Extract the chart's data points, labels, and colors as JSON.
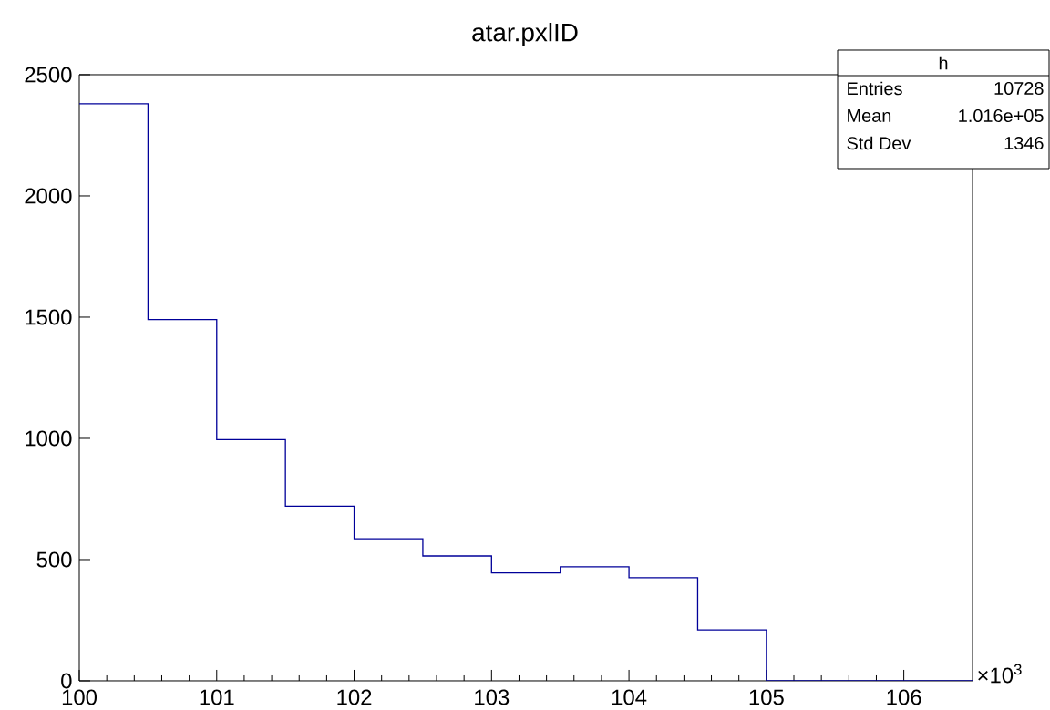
{
  "chart_data": {
    "type": "histogram",
    "title": "atar.pxlID",
    "bins": [
      100,
      100.5,
      101,
      101.5,
      102,
      102.5,
      103,
      103.5,
      104,
      104.5,
      105,
      105.5,
      106,
      106.5
    ],
    "values": [
      2380,
      1490,
      995,
      720,
      586,
      515,
      445,
      470,
      425,
      210,
      0,
      0,
      0
    ],
    "color": "#000099",
    "xlim": [
      100,
      106.5
    ],
    "ylim": [
      0,
      2500
    ],
    "xticks": [
      100,
      101,
      102,
      103,
      104,
      105,
      106
    ],
    "yticks": [
      0,
      500,
      1000,
      1500,
      2000,
      2500
    ],
    "annotations": [
      "h",
      "Entries",
      "10728",
      "Mean",
      "1.016e+05",
      "Std Dev",
      "1346",
      "×10$^{3}$"
    ]
  }
}
